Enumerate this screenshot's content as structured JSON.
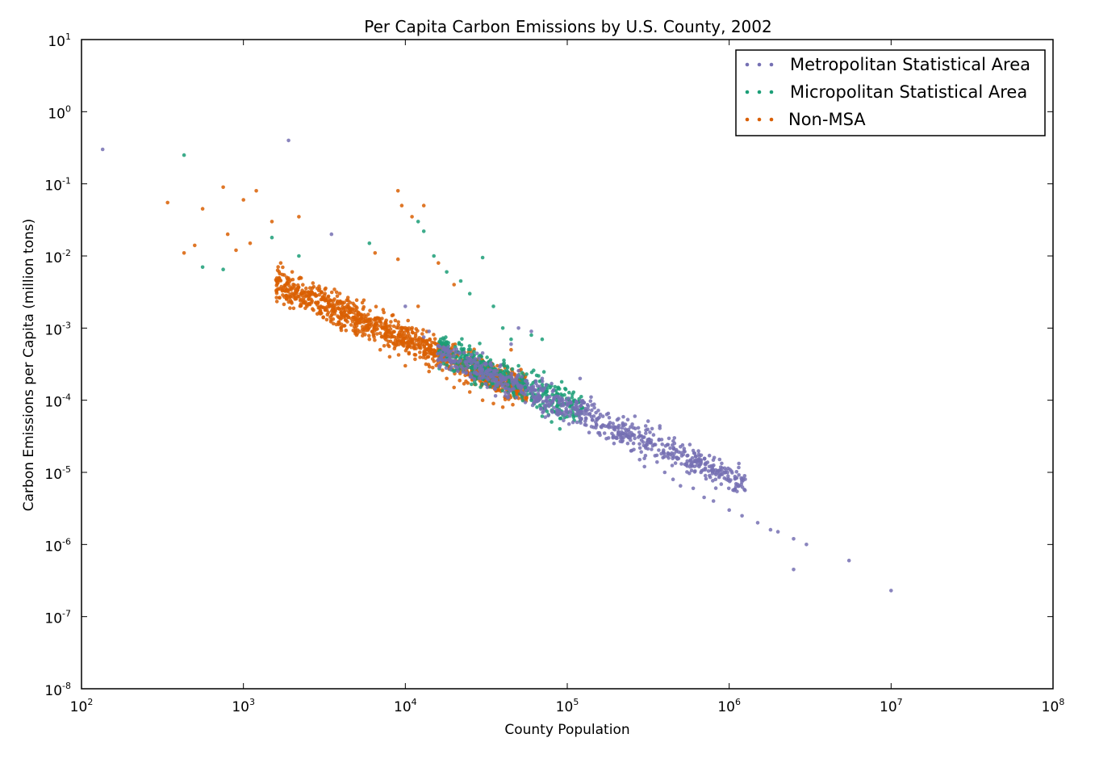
{
  "chart_data": {
    "type": "scatter",
    "title": "Per Capita Carbon Emissions by U.S. County, 2002",
    "xlabel": "County Population",
    "ylabel": "Carbon Emissions per Capita (million tons)",
    "xscale": "log",
    "yscale": "log",
    "xlim": [
      100,
      100000000
    ],
    "ylim": [
      1e-08,
      10
    ],
    "x_ticks": [
      {
        "base": "10",
        "exp": "2"
      },
      {
        "base": "10",
        "exp": "3"
      },
      {
        "base": "10",
        "exp": "4"
      },
      {
        "base": "10",
        "exp": "5"
      },
      {
        "base": "10",
        "exp": "6"
      },
      {
        "base": "10",
        "exp": "7"
      },
      {
        "base": "10",
        "exp": "8"
      }
    ],
    "y_ticks": [
      {
        "base": "10",
        "exp": "1"
      },
      {
        "base": "10",
        "exp": "0"
      },
      {
        "base": "10",
        "exp": "-1"
      },
      {
        "base": "10",
        "exp": "-2"
      },
      {
        "base": "10",
        "exp": "-3"
      },
      {
        "base": "10",
        "exp": "-4"
      },
      {
        "base": "10",
        "exp": "-5"
      },
      {
        "base": "10",
        "exp": "-6"
      },
      {
        "base": "10",
        "exp": "-7"
      },
      {
        "base": "10",
        "exp": "-8"
      }
    ],
    "grid": false,
    "legend_position": "top-right",
    "series": [
      {
        "name": "Metropolitan Statistical Area",
        "color": "#7570b3",
        "points": [
          [
            135,
            0.3
          ],
          [
            1900,
            0.4
          ],
          [
            3500,
            0.02
          ],
          [
            10000,
            0.002
          ],
          [
            13000,
            0.00075
          ],
          [
            14000,
            0.0009
          ],
          [
            20000,
            0.0005
          ],
          [
            30000,
            0.00045
          ],
          [
            45000,
            0.0006
          ],
          [
            50000,
            0.001
          ],
          [
            60000,
            0.0009
          ],
          [
            70000,
            0.0002
          ],
          [
            80000,
            0.00017
          ],
          [
            90000,
            0.00011
          ],
          [
            100000,
            9e-05
          ],
          [
            120000,
            0.0002
          ],
          [
            150000,
            5e-05
          ],
          [
            180000,
            3e-05
          ],
          [
            200000,
            3e-05
          ],
          [
            250000,
            2e-05
          ],
          [
            280000,
            1.5e-05
          ],
          [
            300000,
            1.2e-05
          ],
          [
            400000,
            1e-05
          ],
          [
            450000,
            8e-06
          ],
          [
            500000,
            6.5e-06
          ],
          [
            600000,
            6e-06
          ],
          [
            700000,
            4.5e-06
          ],
          [
            800000,
            4e-06
          ],
          [
            1000000,
            3e-06
          ],
          [
            1200000,
            2.5e-06
          ],
          [
            1500000,
            2e-06
          ],
          [
            1800000,
            1.6e-06
          ],
          [
            2000000,
            1.5e-06
          ],
          [
            2500000,
            1.2e-06
          ],
          [
            3000000,
            1e-06
          ],
          [
            2500000,
            4.5e-07
          ],
          [
            5500000,
            6e-07
          ],
          [
            10000000,
            2.3e-07
          ]
        ]
      },
      {
        "name": "Micropolitan Statistical Area",
        "color": "#1b9e77",
        "points": [
          [
            430,
            0.25
          ],
          [
            560,
            0.007
          ],
          [
            750,
            0.0065
          ],
          [
            1500,
            0.018
          ],
          [
            2200,
            0.01
          ],
          [
            6000,
            0.015
          ],
          [
            12000,
            0.03
          ],
          [
            13000,
            0.022
          ],
          [
            15000,
            0.01
          ],
          [
            18000,
            0.006
          ],
          [
            22000,
            0.0045
          ],
          [
            25000,
            0.003
          ],
          [
            30000,
            0.0095
          ],
          [
            35000,
            0.002
          ],
          [
            40000,
            0.001
          ],
          [
            45000,
            0.0007
          ],
          [
            50000,
            0.0003
          ],
          [
            55000,
            0.00015
          ],
          [
            60000,
            0.0001
          ],
          [
            65000,
            8e-05
          ],
          [
            70000,
            6e-05
          ],
          [
            75000,
            7e-05
          ],
          [
            80000,
            5e-05
          ],
          [
            90000,
            4e-05
          ],
          [
            60000,
            0.0008
          ],
          [
            70000,
            0.0007
          ]
        ]
      },
      {
        "name": "Non-MSA",
        "color": "#d95f02",
        "points": [
          [
            340,
            0.055
          ],
          [
            430,
            0.011
          ],
          [
            500,
            0.014
          ],
          [
            560,
            0.045
          ],
          [
            750,
            0.09
          ],
          [
            800,
            0.02
          ],
          [
            900,
            0.012
          ],
          [
            1000,
            0.06
          ],
          [
            1100,
            0.015
          ],
          [
            1200,
            0.08
          ],
          [
            1500,
            0.03
          ],
          [
            1700,
            0.008
          ],
          [
            2000,
            0.006
          ],
          [
            2200,
            0.035
          ],
          [
            2500,
            0.003
          ],
          [
            3000,
            0.002
          ],
          [
            3500,
            0.0015
          ],
          [
            4000,
            0.001
          ],
          [
            5000,
            0.0008
          ],
          [
            6000,
            0.0007
          ],
          [
            7000,
            0.0005
          ],
          [
            8000,
            0.0004
          ],
          [
            9000,
            0.08
          ],
          [
            9500,
            0.05
          ],
          [
            10000,
            0.0003
          ],
          [
            11000,
            0.035
          ],
          [
            13000,
            0.05
          ],
          [
            14000,
            0.00025
          ],
          [
            18000,
            0.0002
          ],
          [
            20000,
            0.00015
          ],
          [
            25000,
            0.00013
          ],
          [
            30000,
            0.0001
          ],
          [
            35000,
            9e-05
          ],
          [
            40000,
            8e-05
          ],
          [
            45000,
            0.0005
          ],
          [
            20000,
            0.004
          ],
          [
            16000,
            0.008
          ],
          [
            12000,
            0.002
          ],
          [
            9000,
            0.009
          ],
          [
            6500,
            0.011
          ]
        ]
      }
    ],
    "dense_bands": [
      {
        "series": 2,
        "count": 1100,
        "x_log_range": [
          3.2,
          4.75
        ],
        "y_log_at_x3": -2.2,
        "slope": -0.95,
        "spread": 0.22
      },
      {
        "series": 1,
        "count": 450,
        "x_log_range": [
          4.2,
          5.1
        ],
        "y_log_at_x3": -2.15,
        "slope": -0.95,
        "spread": 0.22
      },
      {
        "series": 0,
        "count": 750,
        "x_log_range": [
          4.2,
          6.1
        ],
        "y_log_at_x3": -2.2,
        "slope": -0.95,
        "spread": 0.2
      }
    ]
  }
}
